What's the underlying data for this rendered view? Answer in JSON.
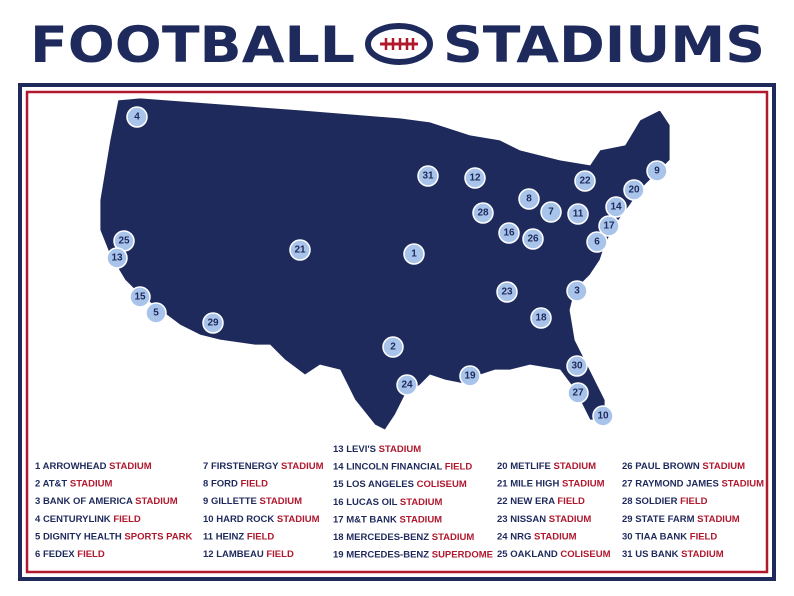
{
  "title": {
    "left": "FOOTBALL",
    "right": "STADIUMS"
  },
  "markers": [
    "4",
    "31",
    "12",
    "8",
    "22",
    "9",
    "20",
    "28",
    "7",
    "11",
    "14",
    "17",
    "16",
    "26",
    "6",
    "25",
    "13",
    "21",
    "1",
    "3",
    "23",
    "15",
    "5",
    "18",
    "29",
    "2",
    "30",
    "19",
    "24",
    "27",
    "10"
  ],
  "legend": [
    [
      {
        "num": "1",
        "name": "ARROWHEAD",
        "type": "STADIUM"
      },
      {
        "num": "2",
        "name": "AT&T",
        "type": "STADIUM"
      },
      {
        "num": "3",
        "name": "BANK OF AMERICA",
        "type": "STADIUM"
      },
      {
        "num": "4",
        "name": "CENTURYLINK",
        "type": "FIELD"
      },
      {
        "num": "5",
        "name": "DIGNITY HEALTH",
        "type": "SPORTS PARK"
      },
      {
        "num": "6",
        "name": "FEDEX",
        "type": "FIELD"
      }
    ],
    [
      {
        "num": "7",
        "name": "FIRSTENERGY",
        "type": "STADIUM"
      },
      {
        "num": "8",
        "name": "FORD",
        "type": "FIELD"
      },
      {
        "num": "9",
        "name": "GILLETTE",
        "type": "STADIUM"
      },
      {
        "num": "10",
        "name": "HARD ROCK",
        "type": "STADIUM"
      },
      {
        "num": "11",
        "name": "HEINZ",
        "type": "FIELD"
      },
      {
        "num": "12",
        "name": "LAMBEAU",
        "type": "FIELD"
      }
    ],
    [
      {
        "num": "13",
        "name": "LEVI'S",
        "type": "STADIUM"
      },
      {
        "num": "14",
        "name": "LINCOLN FINANCIAL",
        "type": "FIELD"
      },
      {
        "num": "15",
        "name": "LOS ANGELES",
        "type": "COLISEUM"
      },
      {
        "num": "16",
        "name": "LUCAS OIL",
        "type": "STADIUM"
      },
      {
        "num": "17",
        "name": "M&T BANK",
        "type": "STADIUM"
      },
      {
        "num": "18",
        "name": "MERCEDES-BENZ",
        "type": "STADIUM"
      },
      {
        "num": "19",
        "name": "MERCEDES-BENZ",
        "type": "SUPERDOME"
      }
    ],
    [
      {
        "num": "20",
        "name": "METLIFE",
        "type": "STADIUM"
      },
      {
        "num": "21",
        "name": "MILE HIGH",
        "type": "STADIUM"
      },
      {
        "num": "22",
        "name": "NEW ERA",
        "type": "FIELD"
      },
      {
        "num": "23",
        "name": "NISSAN",
        "type": "STADIUM"
      },
      {
        "num": "24",
        "name": "NRG",
        "type": "STADIUM"
      },
      {
        "num": "25",
        "name": "OAKLAND",
        "type": "COLISEUM"
      }
    ],
    [
      {
        "num": "26",
        "name": "PAUL BROWN",
        "type": "STADIUM"
      },
      {
        "num": "27",
        "name": "RAYMOND JAMES",
        "type": "STADIUM"
      },
      {
        "num": "28",
        "name": "SOLDIER",
        "type": "FIELD"
      },
      {
        "num": "29",
        "name": "STATE FARM",
        "type": "STADIUM"
      },
      {
        "num": "30",
        "name": "TIAA BANK",
        "type": "FIELD"
      },
      {
        "num": "31",
        "name": "US BANK",
        "type": "STADIUM"
      }
    ]
  ]
}
